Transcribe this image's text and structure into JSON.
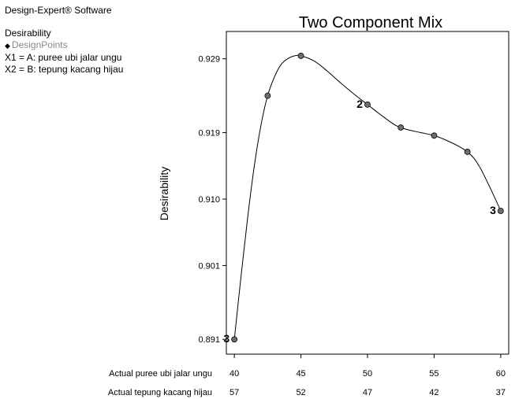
{
  "header": {
    "software": "Design-Expert® Software"
  },
  "legend": {
    "response": "Desirability",
    "design_points": "DesignPoints",
    "x1": "X1 = A: puree ubi jalar ungu",
    "x2": "X2 = B: tepung kacang hijau"
  },
  "chart_data": {
    "type": "line",
    "title": "Two Component Mix",
    "ylabel": "Desirability",
    "xlabel": "",
    "x_rows": [
      {
        "label": "Actual puree ubi jalar ungu",
        "ticks": [
          "40",
          "45",
          "50",
          "55",
          "60"
        ]
      },
      {
        "label": "Actual tepung kacang hijau",
        "ticks": [
          "57",
          "52",
          "47",
          "42",
          "37"
        ]
      }
    ],
    "x_tick_values": [
      40,
      45,
      50,
      55,
      60
    ],
    "xlim": [
      39.4,
      60.6
    ],
    "y_ticks": [
      "0.891",
      "0.901",
      "0.910",
      "0.919",
      "0.929"
    ],
    "y_tick_values": [
      0.891,
      0.901,
      0.91,
      0.919,
      0.929
    ],
    "ylim": [
      0.889,
      0.9327
    ],
    "curve": {
      "x": [
        40,
        40.5,
        41,
        41.5,
        42,
        42.5,
        43,
        43.5,
        44,
        44.5,
        45,
        46,
        47,
        48,
        49,
        50,
        51,
        52,
        52.5,
        53,
        54,
        55,
        56,
        57,
        57.5,
        58,
        58.5,
        59,
        59.5,
        60
      ],
      "y": [
        0.891,
        0.8995,
        0.9075,
        0.9145,
        0.92,
        0.924,
        0.9265,
        0.9282,
        0.929,
        0.9294,
        0.9294,
        0.9287,
        0.9273,
        0.9257,
        0.9242,
        0.9228,
        0.9214,
        0.9201,
        0.9197,
        0.9194,
        0.919,
        0.9186,
        0.9179,
        0.917,
        0.9164,
        0.9155,
        0.9141,
        0.9123,
        0.9104,
        0.9084
      ]
    },
    "design_points": [
      {
        "x": 40,
        "y": 0.891,
        "label": "3"
      },
      {
        "x": 42.5,
        "y": 0.924,
        "label": ""
      },
      {
        "x": 45,
        "y": 0.9294,
        "label": ""
      },
      {
        "x": 50,
        "y": 0.9228,
        "label": "2"
      },
      {
        "x": 52.5,
        "y": 0.9197,
        "label": ""
      },
      {
        "x": 55,
        "y": 0.9186,
        "label": ""
      },
      {
        "x": 57.5,
        "y": 0.9164,
        "label": ""
      },
      {
        "x": 60,
        "y": 0.9084,
        "label": "3"
      }
    ],
    "grid": false,
    "colors": {
      "curve": "#000000",
      "point_fill": "#6e6e6e",
      "point_stroke": "#000000"
    }
  }
}
